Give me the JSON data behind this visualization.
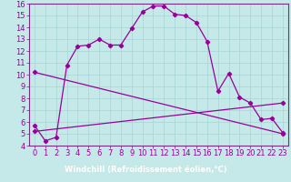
{
  "xlabel": "Windchill (Refroidissement éolien,°C)",
  "bg_color": "#c5e8e8",
  "plot_bg_color": "#c5e8e8",
  "xlabel_bg": "#7b2d82",
  "xlabel_fg": "#ffffff",
  "line_color": "#990099",
  "grid_color": "#a8d4d4",
  "spine_color": "#7b2d82",
  "xlim": [
    -0.5,
    23.5
  ],
  "ylim": [
    4,
    16
  ],
  "yticks": [
    4,
    5,
    6,
    7,
    8,
    9,
    10,
    11,
    12,
    13,
    14,
    15,
    16
  ],
  "xticks": [
    0,
    1,
    2,
    3,
    4,
    5,
    6,
    7,
    8,
    9,
    10,
    11,
    12,
    13,
    14,
    15,
    16,
    17,
    18,
    19,
    20,
    21,
    22,
    23
  ],
  "line1_x": [
    0,
    1,
    2,
    3,
    4,
    5,
    6,
    7,
    8,
    9,
    10,
    11,
    12,
    13,
    14,
    15,
    16,
    17,
    18,
    19,
    20,
    21,
    22,
    23
  ],
  "line1_y": [
    5.7,
    4.4,
    4.7,
    10.8,
    12.4,
    12.5,
    13.0,
    12.5,
    12.5,
    13.9,
    15.3,
    15.8,
    15.8,
    15.1,
    15.0,
    14.4,
    12.8,
    8.6,
    10.1,
    8.1,
    7.6,
    6.2,
    6.3,
    5.1
  ],
  "line2_x": [
    0,
    23
  ],
  "line2_y": [
    10.2,
    5.0
  ],
  "line3_x": [
    0,
    23
  ],
  "line3_y": [
    5.2,
    7.6
  ],
  "tick_fontsize": 6,
  "xlabel_fontsize": 6
}
